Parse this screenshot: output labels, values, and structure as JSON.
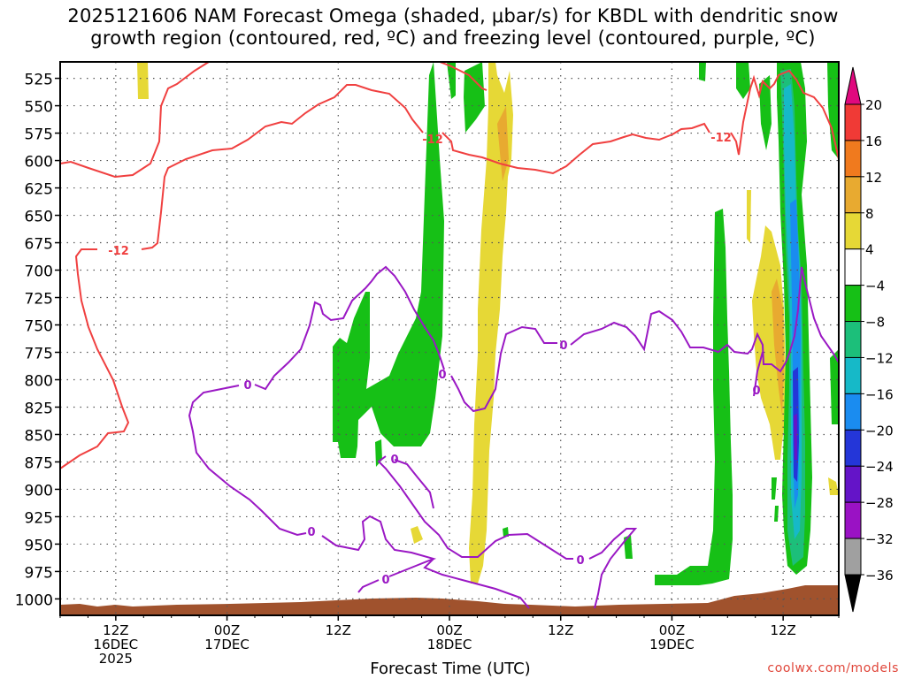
{
  "title": {
    "line1": "2025121606 NAM Forecast Omega (shaded, μbar/s) for KBDL with dendritic snow",
    "line2": "growth region (contoured, red, ºC) and freezing level (contoured, purple, ºC)"
  },
  "credit": "coolwx.com/models",
  "chart_data": {
    "type": "time-height cross section",
    "title": "2025121606 NAM Forecast Omega (shaded, μbar/s) for KBDL with dendritic snow growth region (contoured, red, ºC) and freezing level (contoured, purple, ºC)",
    "xlabel": "Forecast Time (UTC)",
    "ylabel": "",
    "x_ticks": [
      {
        "lines": [
          "12Z",
          "16DEC",
          "2025"
        ],
        "hour": 12
      },
      {
        "lines": [
          "00Z",
          "17DEC"
        ],
        "hour": 24
      },
      {
        "lines": [
          "12Z"
        ],
        "hour": 36
      },
      {
        "lines": [
          "00Z",
          "18DEC"
        ],
        "hour": 48
      },
      {
        "lines": [
          "12Z"
        ],
        "hour": 60
      },
      {
        "lines": [
          "00Z",
          "19DEC"
        ],
        "hour": 72
      },
      {
        "lines": [
          "12Z"
        ],
        "hour": 84
      }
    ],
    "xlim_hours": [
      6,
      90
    ],
    "y_ticks": [
      525,
      550,
      575,
      600,
      625,
      650,
      675,
      700,
      725,
      750,
      775,
      800,
      825,
      850,
      875,
      900,
      925,
      950,
      975,
      1000
    ],
    "ylim_hPa": [
      510,
      1015
    ],
    "colorbar": {
      "labels": [
        "20",
        "16",
        "12",
        "8",
        "4",
        "−4",
        "−8",
        "−12",
        "−16",
        "−20",
        "−24",
        "−28",
        "−32",
        "−36"
      ],
      "levels": [
        20,
        16,
        12,
        8,
        4,
        -4,
        -8,
        -12,
        -16,
        -20,
        -24,
        -28,
        -32,
        -36
      ],
      "colors": [
        "#e0097e",
        "#f03a36",
        "#f07a1e",
        "#e8aa30",
        "#e6d836",
        "#ffffff",
        "#16c016",
        "#1cbf7a",
        "#16b9c8",
        "#1a8cf0",
        "#2436d8",
        "#6414c8",
        "#9a12c4",
        "#a0a0a0",
        "#000000"
      ]
    },
    "contour_labels": {
      "dgz_red": "-12",
      "freezing_purple": "0"
    },
    "series_colors": {
      "dgz": "#f04040",
      "freezing": "#9a18c4",
      "terrain": "#a0522d"
    }
  }
}
